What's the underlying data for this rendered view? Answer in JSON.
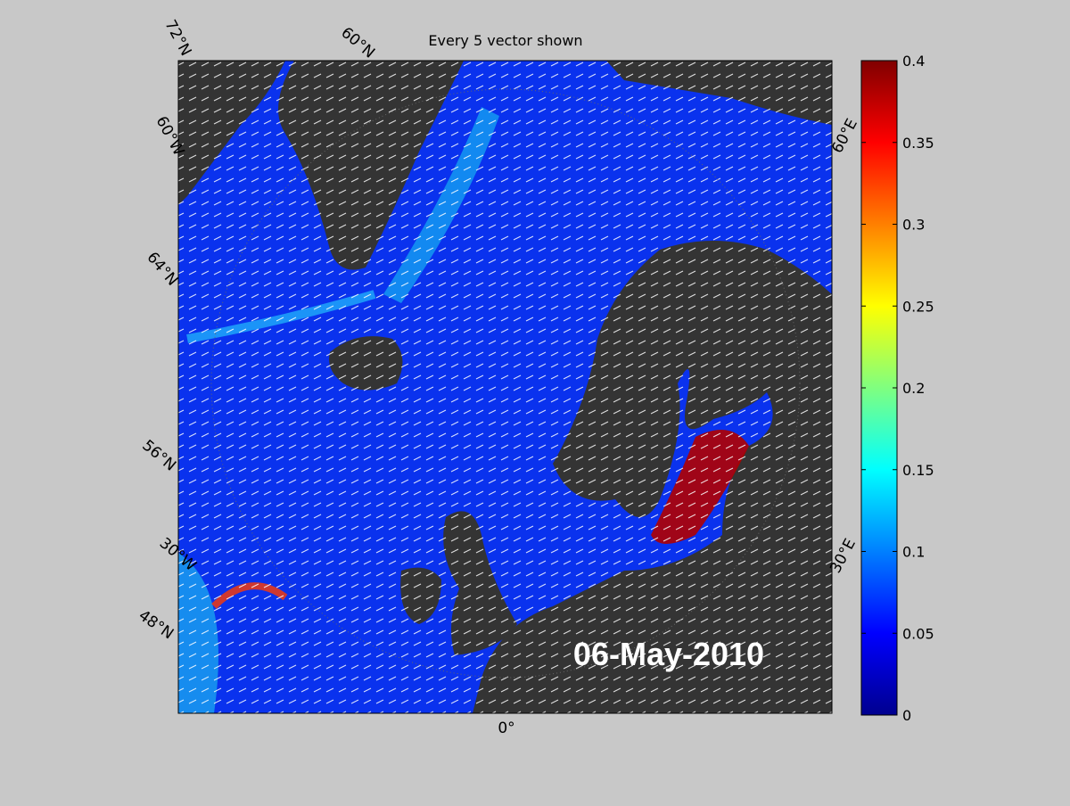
{
  "title": "Every 5 vector shown",
  "date_label": "06-May-2010",
  "graticule_labels": [
    "72°N",
    "60°N",
    "60°W",
    "64°N",
    "56°N",
    "30°W",
    "48°N",
    "0°",
    "60°E",
    "30°E"
  ],
  "colorbar": {
    "limits": [
      0,
      0.4
    ],
    "ticks": [
      0,
      0.05,
      0.1,
      0.15,
      0.2,
      0.25,
      0.3,
      0.35,
      0.4
    ]
  }
}
